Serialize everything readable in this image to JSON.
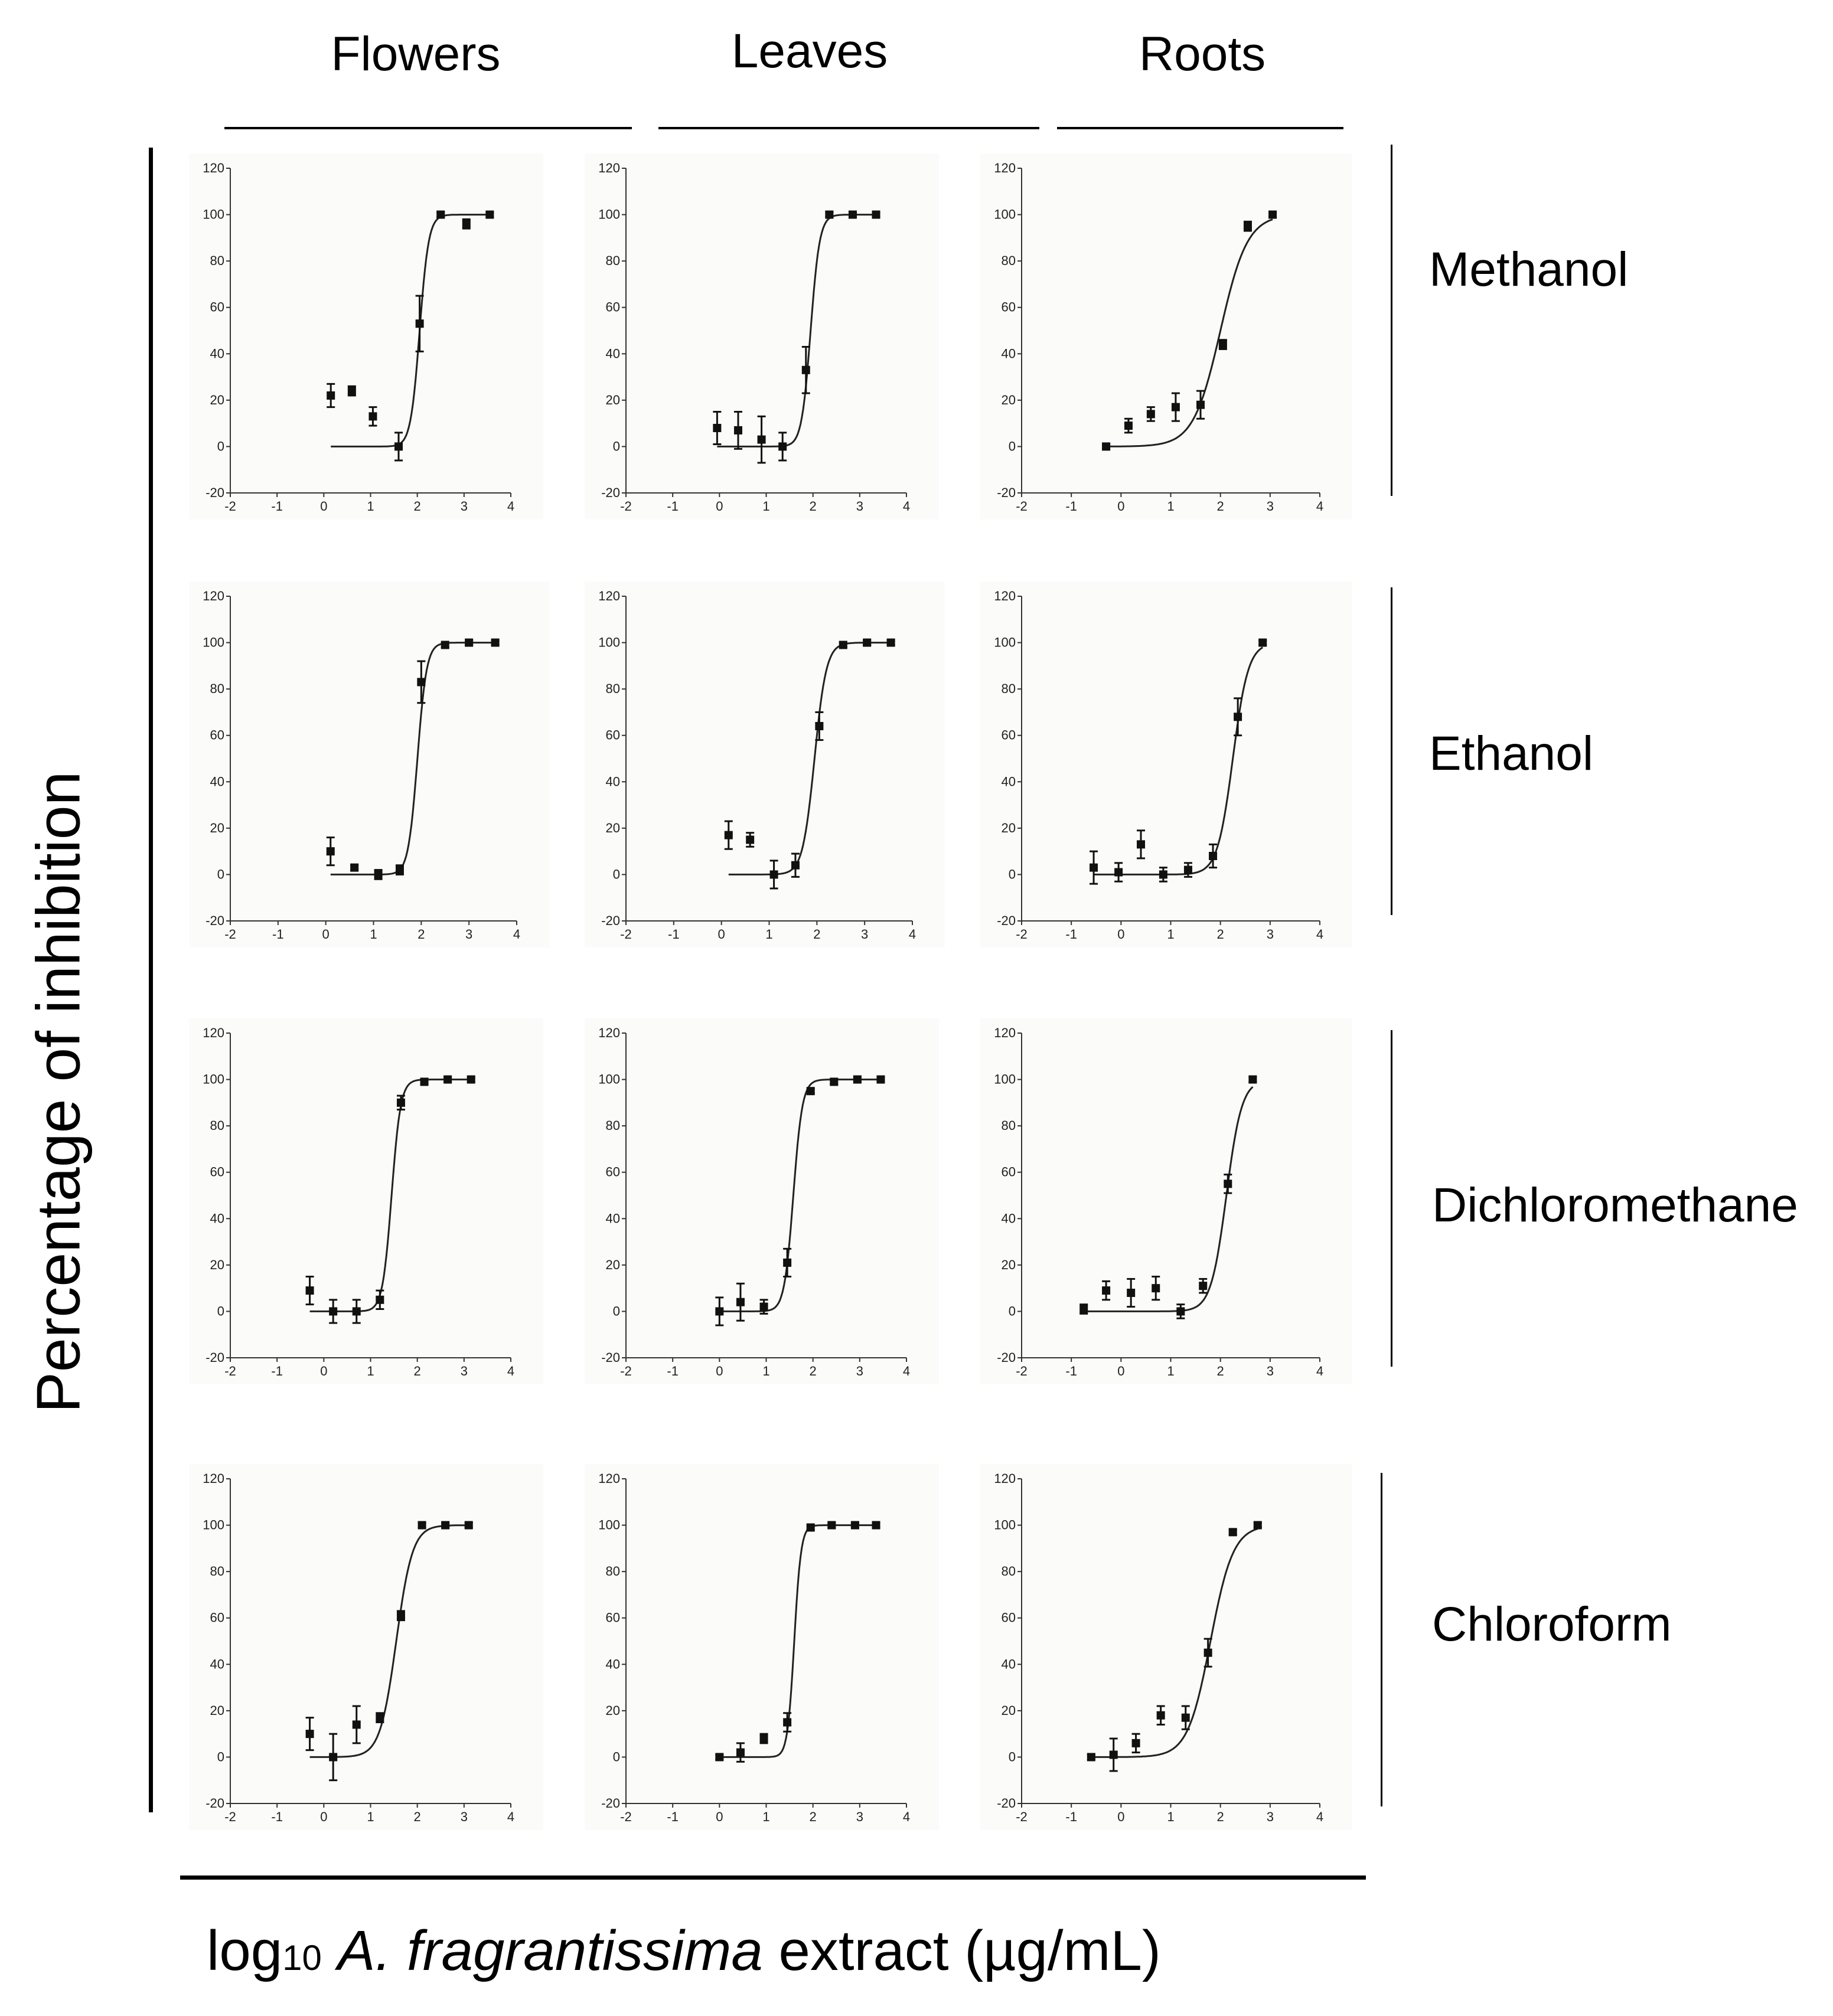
{
  "figure": {
    "columns": [
      "Flowers",
      "Leaves",
      "Roots"
    ],
    "rows": [
      "Methanol",
      "Ethanol",
      "Dichloromethane",
      "Chloroform"
    ],
    "y_axis_label": "Percentage of inhibition",
    "x_axis_label": {
      "prefix": "log",
      "subscript": "10",
      "species": "A. fragrantissima",
      "suffix": " extract",
      "unit": "(µg/mL)"
    }
  },
  "chart_data": [
    {
      "type": "scatter",
      "column": "Flowers",
      "row": "Methanol",
      "xlim": [
        -2,
        4
      ],
      "ylim": [
        -20,
        120
      ],
      "x_ticks": [
        "-2",
        "-1",
        "0",
        "1",
        "2",
        "3",
        "4"
      ],
      "y_ticks": [
        "-20",
        "0",
        "20",
        "40",
        "60",
        "80",
        "100",
        "120"
      ],
      "points": [
        {
          "x": 0.15,
          "y": 22,
          "err": 5
        },
        {
          "x": 0.6,
          "y": 24,
          "err": 2
        },
        {
          "x": 1.05,
          "y": 13,
          "err": 4
        },
        {
          "x": 1.6,
          "y": 0,
          "err": 6
        },
        {
          "x": 2.05,
          "y": 53,
          "err": 12
        },
        {
          "x": 2.5,
          "y": 100,
          "err": 1
        },
        {
          "x": 3.05,
          "y": 96,
          "err": 2
        },
        {
          "x": 3.55,
          "y": 100,
          "err": 1
        }
      ],
      "fit": {
        "bottom": 0,
        "top": 100,
        "logIC50": 2.05,
        "hill": 4.5,
        "x_range": [
          0.15,
          3.55
        ]
      }
    },
    {
      "type": "scatter",
      "column": "Leaves",
      "row": "Methanol",
      "xlim": [
        -2,
        4
      ],
      "ylim": [
        -20,
        120
      ],
      "x_ticks": [
        "-2",
        "-1",
        "0",
        "1",
        "2",
        "3",
        "4"
      ],
      "y_ticks": [
        "-20",
        "0",
        "20",
        "40",
        "60",
        "80",
        "100",
        "120"
      ],
      "points": [
        {
          "x": -0.05,
          "y": 8,
          "err": 7
        },
        {
          "x": 0.4,
          "y": 7,
          "err": 8
        },
        {
          "x": 0.9,
          "y": 3,
          "err": 10
        },
        {
          "x": 1.35,
          "y": 0,
          "err": 6
        },
        {
          "x": 1.85,
          "y": 33,
          "err": 10
        },
        {
          "x": 2.35,
          "y": 100,
          "err": 1
        },
        {
          "x": 2.85,
          "y": 100,
          "err": 1
        },
        {
          "x": 3.35,
          "y": 100,
          "err": 1
        }
      ],
      "fit": {
        "bottom": 0,
        "top": 100,
        "logIC50": 1.95,
        "hill": 4.5,
        "x_range": [
          -0.05,
          3.35
        ]
      }
    },
    {
      "type": "scatter",
      "column": "Roots",
      "row": "Methanol",
      "xlim": [
        -2,
        4
      ],
      "ylim": [
        -20,
        120
      ],
      "x_ticks": [
        "-2",
        "-1",
        "0",
        "1",
        "2",
        "3",
        "4"
      ],
      "y_ticks": [
        "-20",
        "0",
        "20",
        "40",
        "60",
        "80",
        "100",
        "120"
      ],
      "points": [
        {
          "x": -0.3,
          "y": 0,
          "err": 1
        },
        {
          "x": 0.15,
          "y": 9,
          "err": 3
        },
        {
          "x": 0.6,
          "y": 14,
          "err": 3
        },
        {
          "x": 1.1,
          "y": 17,
          "err": 6
        },
        {
          "x": 1.6,
          "y": 18,
          "err": 6
        },
        {
          "x": 2.05,
          "y": 44,
          "err": 2
        },
        {
          "x": 2.55,
          "y": 95,
          "err": 2
        },
        {
          "x": 3.05,
          "y": 100,
          "err": 1
        }
      ],
      "fit": {
        "bottom": 0,
        "top": 100,
        "logIC50": 2.0,
        "hill": 1.6,
        "x_range": [
          -0.3,
          3.05
        ]
      }
    },
    {
      "type": "scatter",
      "column": "Flowers",
      "row": "Ethanol",
      "xlim": [
        -2,
        4
      ],
      "ylim": [
        -20,
        120
      ],
      "x_ticks": [
        "-2",
        "-1",
        "0",
        "1",
        "2",
        "3",
        "4"
      ],
      "y_ticks": [
        "-20",
        "0",
        "20",
        "40",
        "60",
        "80",
        "100",
        "120"
      ],
      "points": [
        {
          "x": 0.1,
          "y": 10,
          "err": 6
        },
        {
          "x": 0.6,
          "y": 3,
          "err": 1
        },
        {
          "x": 1.1,
          "y": 0,
          "err": 2
        },
        {
          "x": 1.55,
          "y": 2,
          "err": 2
        },
        {
          "x": 2.0,
          "y": 83,
          "err": 9
        },
        {
          "x": 2.5,
          "y": 99,
          "err": 1
        },
        {
          "x": 3.0,
          "y": 100,
          "err": 1
        },
        {
          "x": 3.55,
          "y": 100,
          "err": 1
        }
      ],
      "fit": {
        "bottom": 0,
        "top": 100,
        "logIC50": 1.92,
        "hill": 4.5,
        "x_range": [
          0.1,
          3.55
        ]
      }
    },
    {
      "type": "scatter",
      "column": "Leaves",
      "row": "Ethanol",
      "xlim": [
        -2,
        4
      ],
      "ylim": [
        -20,
        120
      ],
      "x_ticks": [
        "-2",
        "-1",
        "0",
        "1",
        "2",
        "3",
        "4"
      ],
      "y_ticks": [
        "-20",
        "0",
        "20",
        "40",
        "60",
        "80",
        "100",
        "120"
      ],
      "points": [
        {
          "x": 0.15,
          "y": 17,
          "err": 6
        },
        {
          "x": 0.6,
          "y": 15,
          "err": 3
        },
        {
          "x": 1.1,
          "y": 0,
          "err": 6
        },
        {
          "x": 1.55,
          "y": 4,
          "err": 5
        },
        {
          "x": 2.05,
          "y": 64,
          "err": 6
        },
        {
          "x": 2.55,
          "y": 99,
          "err": 1
        },
        {
          "x": 3.05,
          "y": 100,
          "err": 1
        },
        {
          "x": 3.55,
          "y": 100,
          "err": 1
        }
      ],
      "fit": {
        "bottom": 0,
        "top": 100,
        "logIC50": 1.95,
        "hill": 3.5,
        "x_range": [
          0.15,
          3.55
        ]
      }
    },
    {
      "type": "scatter",
      "column": "Roots",
      "row": "Ethanol",
      "xlim": [
        -2,
        4
      ],
      "ylim": [
        -20,
        120
      ],
      "x_ticks": [
        "-2",
        "-1",
        "0",
        "1",
        "2",
        "3",
        "4"
      ],
      "y_ticks": [
        "-20",
        "0",
        "20",
        "40",
        "60",
        "80",
        "100",
        "120"
      ],
      "points": [
        {
          "x": -0.55,
          "y": 3,
          "err": 7
        },
        {
          "x": -0.05,
          "y": 1,
          "err": 4
        },
        {
          "x": 0.4,
          "y": 13,
          "err": 6
        },
        {
          "x": 0.85,
          "y": 0,
          "err": 3
        },
        {
          "x": 1.35,
          "y": 2,
          "err": 3
        },
        {
          "x": 1.85,
          "y": 8,
          "err": 5
        },
        {
          "x": 2.35,
          "y": 68,
          "err": 8
        },
        {
          "x": 2.85,
          "y": 100,
          "err": 1
        }
      ],
      "fit": {
        "bottom": 0,
        "top": 100,
        "logIC50": 2.25,
        "hill": 2.8,
        "x_range": [
          -0.55,
          2.85
        ]
      }
    },
    {
      "type": "scatter",
      "column": "Flowers",
      "row": "Dichloromethane",
      "xlim": [
        -2,
        4
      ],
      "ylim": [
        -20,
        120
      ],
      "x_ticks": [
        "-2",
        "-1",
        "0",
        "1",
        "2",
        "3",
        "4"
      ],
      "y_ticks": [
        "-20",
        "0",
        "20",
        "40",
        "60",
        "80",
        "100",
        "120"
      ],
      "points": [
        {
          "x": -0.3,
          "y": 9,
          "err": 6
        },
        {
          "x": 0.2,
          "y": 0,
          "err": 5
        },
        {
          "x": 0.7,
          "y": 0,
          "err": 5
        },
        {
          "x": 1.2,
          "y": 5,
          "err": 4
        },
        {
          "x": 1.65,
          "y": 90,
          "err": 3
        },
        {
          "x": 2.15,
          "y": 99,
          "err": 1
        },
        {
          "x": 2.65,
          "y": 100,
          "err": 1
        },
        {
          "x": 3.15,
          "y": 100,
          "err": 1
        }
      ],
      "fit": {
        "bottom": 0,
        "top": 100,
        "logIC50": 1.45,
        "hill": 4.5,
        "x_range": [
          -0.3,
          3.15
        ]
      }
    },
    {
      "type": "scatter",
      "column": "Leaves",
      "row": "Dichloromethane",
      "xlim": [
        -2,
        4
      ],
      "ylim": [
        -20,
        120
      ],
      "x_ticks": [
        "-2",
        "-1",
        "0",
        "1",
        "2",
        "3",
        "4"
      ],
      "y_ticks": [
        "-20",
        "0",
        "20",
        "40",
        "60",
        "80",
        "100",
        "120"
      ],
      "points": [
        {
          "x": 0.0,
          "y": 0,
          "err": 6
        },
        {
          "x": 0.45,
          "y": 4,
          "err": 8
        },
        {
          "x": 0.95,
          "y": 2,
          "err": 3
        },
        {
          "x": 1.45,
          "y": 21,
          "err": 6
        },
        {
          "x": 1.95,
          "y": 95,
          "err": 1
        },
        {
          "x": 2.45,
          "y": 99,
          "err": 1
        },
        {
          "x": 2.95,
          "y": 100,
          "err": 1
        },
        {
          "x": 3.45,
          "y": 100,
          "err": 1
        }
      ],
      "fit": {
        "bottom": 0,
        "top": 100,
        "logIC50": 1.58,
        "hill": 4.5,
        "x_range": [
          0.0,
          3.45
        ]
      }
    },
    {
      "type": "scatter",
      "column": "Roots",
      "row": "Dichloromethane",
      "xlim": [
        -2,
        4
      ],
      "ylim": [
        -20,
        120
      ],
      "x_ticks": [
        "-2",
        "-1",
        "0",
        "1",
        "2",
        "3",
        "4"
      ],
      "y_ticks": [
        "-20",
        "0",
        "20",
        "40",
        "60",
        "80",
        "100",
        "120"
      ],
      "points": [
        {
          "x": -0.75,
          "y": 1,
          "err": 2
        },
        {
          "x": -0.3,
          "y": 9,
          "err": 4
        },
        {
          "x": 0.2,
          "y": 8,
          "err": 6
        },
        {
          "x": 0.7,
          "y": 10,
          "err": 5
        },
        {
          "x": 1.2,
          "y": 0,
          "err": 3
        },
        {
          "x": 1.65,
          "y": 11,
          "err": 3
        },
        {
          "x": 2.15,
          "y": 55,
          "err": 4
        },
        {
          "x": 2.65,
          "y": 100,
          "err": 1
        }
      ],
      "fit": {
        "bottom": 0,
        "top": 100,
        "logIC50": 2.12,
        "hill": 2.8,
        "x_range": [
          -0.75,
          2.65
        ]
      }
    },
    {
      "type": "scatter",
      "column": "Flowers",
      "row": "Chloroform",
      "xlim": [
        -2,
        4
      ],
      "ylim": [
        -20,
        120
      ],
      "x_ticks": [
        "-2",
        "-1",
        "0",
        "1",
        "2",
        "3",
        "4"
      ],
      "y_ticks": [
        "-20",
        "0",
        "20",
        "40",
        "60",
        "80",
        "100",
        "120"
      ],
      "points": [
        {
          "x": -0.3,
          "y": 10,
          "err": 7
        },
        {
          "x": 0.2,
          "y": 0,
          "err": 10
        },
        {
          "x": 0.7,
          "y": 14,
          "err": 8
        },
        {
          "x": 1.2,
          "y": 17,
          "err": 2
        },
        {
          "x": 1.65,
          "y": 61,
          "err": 2
        },
        {
          "x": 2.1,
          "y": 100,
          "err": 1
        },
        {
          "x": 2.6,
          "y": 100,
          "err": 1
        },
        {
          "x": 3.1,
          "y": 100,
          "err": 1
        }
      ],
      "fit": {
        "bottom": 0,
        "top": 100,
        "logIC50": 1.55,
        "hill": 2.5,
        "x_range": [
          -0.3,
          3.1
        ]
      }
    },
    {
      "type": "scatter",
      "column": "Leaves",
      "row": "Chloroform",
      "xlim": [
        -2,
        4
      ],
      "ylim": [
        -20,
        120
      ],
      "x_ticks": [
        "-2",
        "-1",
        "0",
        "1",
        "2",
        "3",
        "4"
      ],
      "y_ticks": [
        "-20",
        "0",
        "20",
        "40",
        "60",
        "80",
        "100",
        "120"
      ],
      "points": [
        {
          "x": 0.0,
          "y": 0,
          "err": 1
        },
        {
          "x": 0.45,
          "y": 2,
          "err": 4
        },
        {
          "x": 0.95,
          "y": 8,
          "err": 2
        },
        {
          "x": 1.45,
          "y": 15,
          "err": 4
        },
        {
          "x": 1.95,
          "y": 99,
          "err": 1
        },
        {
          "x": 2.4,
          "y": 100,
          "err": 1
        },
        {
          "x": 2.9,
          "y": 100,
          "err": 1
        },
        {
          "x": 3.35,
          "y": 100,
          "err": 1
        }
      ],
      "fit": {
        "bottom": 0,
        "top": 100,
        "logIC50": 1.6,
        "hill": 6,
        "x_range": [
          0.0,
          3.35
        ]
      }
    },
    {
      "type": "scatter",
      "column": "Roots",
      "row": "Chloroform",
      "xlim": [
        -2,
        4
      ],
      "ylim": [
        -20,
        120
      ],
      "x_ticks": [
        "-2",
        "-1",
        "0",
        "1",
        "2",
        "3",
        "4"
      ],
      "y_ticks": [
        "-20",
        "0",
        "20",
        "40",
        "60",
        "80",
        "100",
        "120"
      ],
      "points": [
        {
          "x": -0.6,
          "y": 0,
          "err": 1
        },
        {
          "x": -0.15,
          "y": 1,
          "err": 7
        },
        {
          "x": 0.3,
          "y": 6,
          "err": 4
        },
        {
          "x": 0.8,
          "y": 18,
          "err": 4
        },
        {
          "x": 1.3,
          "y": 17,
          "err": 5
        },
        {
          "x": 1.75,
          "y": 45,
          "err": 6
        },
        {
          "x": 2.25,
          "y": 97,
          "err": 1
        },
        {
          "x": 2.75,
          "y": 100,
          "err": 1
        }
      ],
      "fit": {
        "bottom": 0,
        "top": 100,
        "logIC50": 1.8,
        "hill": 1.9,
        "x_range": [
          -0.6,
          2.75
        ]
      }
    }
  ]
}
